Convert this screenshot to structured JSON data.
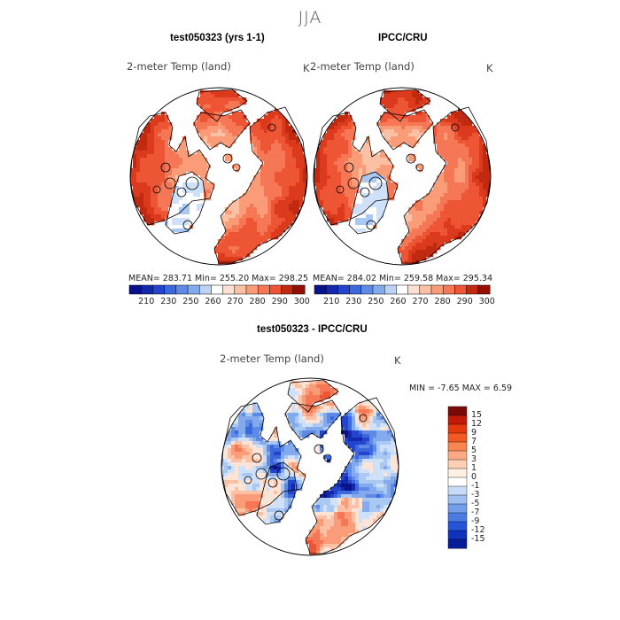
{
  "figure": {
    "title": "JJA",
    "palette_warm": [
      "#fde0d2",
      "#fcc1a5",
      "#fb9c79",
      "#f67755",
      "#ee5535",
      "#dc3a1c",
      "#c02a10",
      "#941005"
    ],
    "palette_cool": [
      "#ffffff",
      "#cfe1f8",
      "#a9c8f4",
      "#84aaee",
      "#5e8ae6",
      "#3b68dc",
      "#2344cc",
      "#1428ad",
      "#08128a"
    ],
    "coast_color": "#000000"
  },
  "chart_data": [
    {
      "type": "heatmap",
      "projection": "north-polar-stereographic",
      "title": "test050323 (yrs 1-1)",
      "subtitle": "2-meter Temp (land)",
      "units": "K",
      "stats": {
        "mean": "283.71",
        "min": "255.20",
        "max": "298.25",
        "text": "MEAN= 283.71   Min= 255.20   Max= 298.25"
      },
      "colorbar": {
        "orientation": "horizontal",
        "ticks": [
          "210",
          "230",
          "250",
          "260",
          "270",
          "280",
          "290",
          "300"
        ],
        "colors": [
          "#08128a",
          "#1428ad",
          "#2344cc",
          "#3b68dc",
          "#5e8ae6",
          "#84aaee",
          "#bcd3f5",
          "#ffffff",
          "#fde0d2",
          "#fcc1a5",
          "#fb9c79",
          "#f67755",
          "#ee5535",
          "#c02a10",
          "#941005"
        ]
      }
    },
    {
      "type": "heatmap",
      "projection": "north-polar-stereographic",
      "title": "IPCC/CRU",
      "subtitle": "2-meter Temp (land)",
      "units": "K",
      "stats": {
        "mean": "284.02",
        "min": "259.58",
        "max": "295.34",
        "text": "MEAN= 284.02   Min= 259.58   Max= 295.34"
      },
      "colorbar": {
        "orientation": "horizontal",
        "ticks": [
          "210",
          "230",
          "250",
          "260",
          "270",
          "280",
          "290",
          "300"
        ],
        "colors": [
          "#08128a",
          "#1428ad",
          "#2344cc",
          "#3b68dc",
          "#5e8ae6",
          "#84aaee",
          "#bcd3f5",
          "#ffffff",
          "#fde0d2",
          "#fcc1a5",
          "#fb9c79",
          "#f67755",
          "#ee5535",
          "#c02a10",
          "#941005"
        ]
      }
    },
    {
      "type": "heatmap",
      "projection": "north-polar-stereographic",
      "title": "test050323 - IPCC/CRU",
      "subtitle": "2-meter Temp (land)",
      "units": "K",
      "stats": {
        "min": "-7.65",
        "max": "6.59",
        "text": "MIN =   -7.65 MAX =    6.59"
      },
      "colorbar": {
        "orientation": "vertical",
        "ticks": [
          "15",
          "12",
          "9",
          "7",
          "5",
          "3",
          "1",
          "0",
          "-1",
          "-3",
          "-5",
          "-7",
          "-9",
          "-12",
          "-15"
        ],
        "colors": [
          "#7a0a0a",
          "#c21a08",
          "#e4380f",
          "#f25a22",
          "#f88552",
          "#fbaa84",
          "#fdcfb5",
          "#fff0e4",
          "#ffffff",
          "#c8dcf8",
          "#9fc0f1",
          "#739eea",
          "#4b7be2",
          "#2555d6",
          "#0f32bd",
          "#081c98"
        ]
      }
    }
  ]
}
